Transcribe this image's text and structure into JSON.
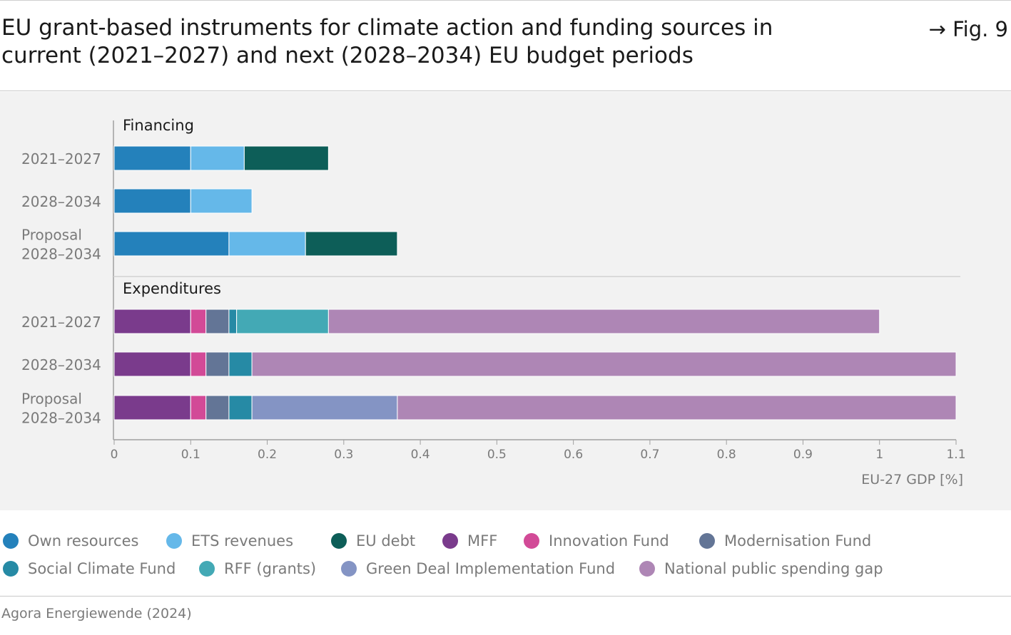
{
  "header": {
    "title": "EU grant-based instruments for climate action and funding sources in current (2021–2027) and next (2028–2034) EU budget periods",
    "fig_label": "→ Fig. 9"
  },
  "source": "Agora Energiewende (2024)",
  "colors": {
    "Own resources": "#2481bb",
    "ETS revenues": "#65b8e9",
    "EU debt": "#0d5e58",
    "MFF": "#7a3b8c",
    "Innovation Fund": "#d24a97",
    "Modernisation Fund": "#637596",
    "Social Climate Fund": "#268aa5",
    "RFF (grants)": "#43a9b5",
    "Green Deal Implementation Fund": "#8494c4",
    "National public spending gap": "#ae86b5"
  },
  "legend": [
    "Own resources",
    "ETS revenues",
    "EU debt",
    "MFF",
    "Innovation Fund",
    "Modernisation Fund",
    "Social Climate Fund",
    "RFF (grants)",
    "Green Deal Implementation Fund",
    "National public spending gap"
  ],
  "chart_data": {
    "type": "bar",
    "orientation": "horizontal",
    "stacked": true,
    "xlabel": "EU-27 GDP [%]",
    "xlim": [
      0,
      1.1
    ],
    "xticks": [
      {
        "value": 0,
        "label": "0"
      },
      {
        "value": 0.1,
        "label": "0.1"
      },
      {
        "value": 0.2,
        "label": "0.2"
      },
      {
        "value": 0.3,
        "label": "0.3"
      },
      {
        "value": 0.4,
        "label": "0.4"
      },
      {
        "value": 0.5,
        "label": "0.5"
      },
      {
        "value": 0.6,
        "label": "0.6"
      },
      {
        "value": 0.7,
        "label": "0.7"
      },
      {
        "value": 0.8,
        "label": "0.8"
      },
      {
        "value": 0.9,
        "label": "0.9"
      },
      {
        "value": 1,
        "label": "1"
      },
      {
        "value": 1.1,
        "label": "1.1"
      }
    ],
    "grid": false,
    "groups": [
      {
        "name": "Financing",
        "rows": [
          {
            "label": [
              "2021–2027"
            ],
            "segments": [
              {
                "series": "Own resources",
                "value": 0.1
              },
              {
                "series": "ETS revenues",
                "value": 0.07
              },
              {
                "series": "EU debt",
                "value": 0.11
              }
            ]
          },
          {
            "label": [
              "2028–2034"
            ],
            "segments": [
              {
                "series": "Own resources",
                "value": 0.1
              },
              {
                "series": "ETS revenues",
                "value": 0.08
              }
            ]
          },
          {
            "label": [
              "Proposal",
              "2028–2034"
            ],
            "segments": [
              {
                "series": "Own resources",
                "value": 0.15
              },
              {
                "series": "ETS revenues",
                "value": 0.1
              },
              {
                "series": "EU debt",
                "value": 0.12
              }
            ]
          }
        ]
      },
      {
        "name": "Expenditures",
        "rows": [
          {
            "label": [
              "2021–2027"
            ],
            "segments": [
              {
                "series": "MFF",
                "value": 0.1
              },
              {
                "series": "Innovation Fund",
                "value": 0.02
              },
              {
                "series": "Modernisation Fund",
                "value": 0.03
              },
              {
                "series": "Social Climate Fund",
                "value": 0.01
              },
              {
                "series": "RFF (grants)",
                "value": 0.12
              },
              {
                "series": "National public spending gap",
                "value": 0.72
              }
            ]
          },
          {
            "label": [
              "2028–2034"
            ],
            "segments": [
              {
                "series": "MFF",
                "value": 0.1
              },
              {
                "series": "Innovation Fund",
                "value": 0.02
              },
              {
                "series": "Modernisation Fund",
                "value": 0.03
              },
              {
                "series": "Social Climate Fund",
                "value": 0.03
              },
              {
                "series": "National public spending gap",
                "value": 0.92
              }
            ]
          },
          {
            "label": [
              "Proposal",
              "2028–2034"
            ],
            "segments": [
              {
                "series": "MFF",
                "value": 0.1
              },
              {
                "series": "Innovation Fund",
                "value": 0.02
              },
              {
                "series": "Modernisation Fund",
                "value": 0.03
              },
              {
                "series": "Social Climate Fund",
                "value": 0.03
              },
              {
                "series": "Green Deal Implementation Fund",
                "value": 0.19
              },
              {
                "series": "National public spending gap",
                "value": 0.73
              }
            ]
          }
        ]
      }
    ]
  }
}
